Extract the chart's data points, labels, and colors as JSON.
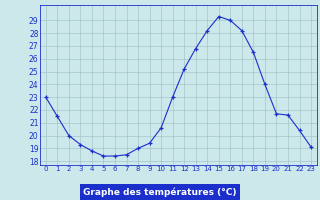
{
  "hours": [
    0,
    1,
    2,
    3,
    4,
    5,
    6,
    7,
    8,
    9,
    10,
    11,
    12,
    13,
    14,
    15,
    16,
    17,
    18,
    19,
    20,
    21,
    22,
    23
  ],
  "temps": [
    23.0,
    21.5,
    20.0,
    19.3,
    18.8,
    18.4,
    18.4,
    18.5,
    19.0,
    19.4,
    20.6,
    23.0,
    25.2,
    26.8,
    28.2,
    29.3,
    29.0,
    28.2,
    26.5,
    24.0,
    21.7,
    21.6,
    20.4,
    19.1
  ],
  "bg_color": "#cce8ea",
  "line_color": "#1a2fcc",
  "grid_color": "#9bbfc2",
  "xlabel": "Graphe des températures (°C)",
  "xlabel_bg": "#1a2fcc",
  "xlabel_color": "#ffffff",
  "yticks": [
    18,
    19,
    20,
    21,
    22,
    23,
    24,
    25,
    26,
    27,
    28,
    29
  ],
  "ylim": [
    17.7,
    30.2
  ],
  "xlim": [
    -0.5,
    23.5
  ],
  "xtick_labels": [
    "0",
    "1",
    "2",
    "3",
    "4",
    "5",
    "6",
    "7",
    "8",
    "9",
    "10",
    "11",
    "12",
    "13",
    "14",
    "15",
    "16",
    "17",
    "18",
    "19",
    "20",
    "21",
    "22",
    "23"
  ]
}
